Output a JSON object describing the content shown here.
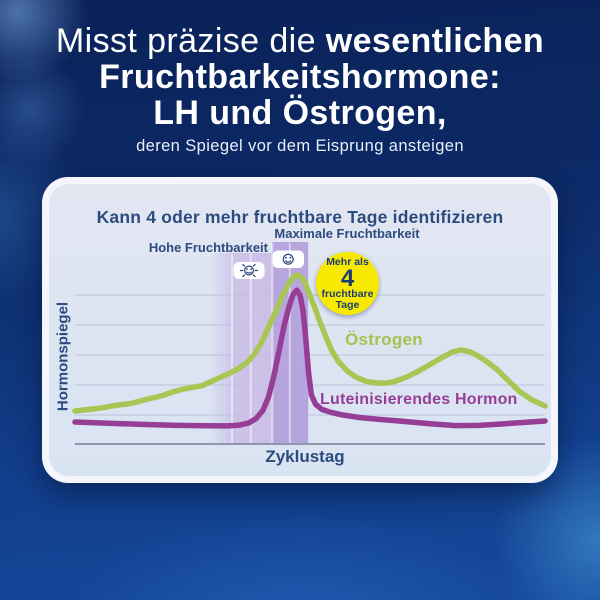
{
  "headline": {
    "line1_light": "Misst präzise die",
    "line1_bold": "wesentlichen",
    "line2": "Fruchtbarkeitshormone:",
    "line3": "LH und Östrogen,",
    "subline": "deren Spiegel vor dem Eisprung ansteigen"
  },
  "card": {
    "title": "Kann 4 oder mehr fruchtbare Tage identifizieren",
    "labels": {
      "high_fertility": "Hohe Fruchtbarkeit",
      "peak_fertility": "Maximale Fruchtbarkeit",
      "estrogen": "Östrogen",
      "lh": "Luteinisierendes Hormon",
      "y_axis": "Hormonspiegel",
      "x_axis": "Zyklustag"
    },
    "badge": {
      "line1": "Mehr als",
      "number": "4",
      "line2": "fruchtbare",
      "line3": "Tage",
      "bg": "#f7ea00",
      "text_color": "#1d3b76"
    }
  },
  "colors": {
    "headline_text": "#ffffff",
    "navy_text": "#2c4b7e",
    "estrogen_green": "#a9c654",
    "lh_purple": "#963e96",
    "band_light": "#c9bbe5",
    "band_dark": "#b3a0db",
    "card_panel": "#dde4f2",
    "gridline": "#c3cfe2",
    "axis": "#8e97ac"
  },
  "chart_data": {
    "type": "line",
    "title": "Kann 4 oder mehr fruchtbare Tage identifizieren",
    "xlabel": "Zyklustag",
    "ylabel": "Hormonspiegel",
    "x_axis_unit": "percent of cycle (schematic, no numeric ticks shown)",
    "y_axis_unit": "relative hormone level 0-100 (schematic, no numeric ticks shown)",
    "grid": "horizontal",
    "legend_position": "inline labels on curves",
    "series": [
      {
        "name": "Östrogen",
        "key": "estrogen",
        "color": "#a9c654",
        "points": [
          [
            0,
            19.5
          ],
          [
            3,
            20.5
          ],
          [
            6,
            21.5
          ],
          [
            9,
            23
          ],
          [
            12,
            24
          ],
          [
            14,
            25.5
          ],
          [
            16,
            27
          ],
          [
            18.5,
            28.5
          ],
          [
            21,
            31
          ],
          [
            23,
            32.5
          ],
          [
            25,
            33.5
          ],
          [
            27,
            34.5
          ],
          [
            29,
            37
          ],
          [
            31,
            39.5
          ],
          [
            33,
            42
          ],
          [
            35,
            45
          ],
          [
            36.5,
            48
          ],
          [
            38,
            52.5
          ],
          [
            39.5,
            59
          ],
          [
            41,
            68
          ],
          [
            42.5,
            77
          ],
          [
            44,
            87
          ],
          [
            45.5,
            95
          ],
          [
            46.6,
            99.3
          ],
          [
            47.3,
            100
          ],
          [
            48.2,
            98.5
          ],
          [
            49,
            95
          ],
          [
            50,
            88
          ],
          [
            51,
            81
          ],
          [
            52,
            73
          ],
          [
            53.3,
            64
          ],
          [
            54.6,
            55.5
          ],
          [
            56,
            49
          ],
          [
            57.8,
            43.5
          ],
          [
            59.8,
            39.5
          ],
          [
            62,
            37
          ],
          [
            64,
            36.2
          ],
          [
            66,
            36
          ],
          [
            68,
            37
          ],
          [
            70.5,
            39.5
          ],
          [
            73,
            43
          ],
          [
            75.5,
            47
          ],
          [
            78,
            51
          ],
          [
            80.3,
            54.5
          ],
          [
            82,
            55.6
          ],
          [
            83.8,
            54.8
          ],
          [
            85.5,
            52.5
          ],
          [
            87.5,
            49
          ],
          [
            89.8,
            44
          ],
          [
            92,
            38
          ],
          [
            94.6,
            31
          ],
          [
            97.3,
            26
          ],
          [
            100,
            22.5
          ]
        ]
      },
      {
        "name": "Luteinisierendes Hormon",
        "key": "lh",
        "color": "#963e96",
        "points": [
          [
            0,
            13
          ],
          [
            5,
            12.5
          ],
          [
            10,
            12
          ],
          [
            16,
            11.5
          ],
          [
            22,
            11
          ],
          [
            28,
            10.8
          ],
          [
            32.5,
            10.7
          ],
          [
            35,
            11.2
          ],
          [
            37,
            12.5
          ],
          [
            38.5,
            15
          ],
          [
            40,
            20
          ],
          [
            41.2,
            28
          ],
          [
            42.3,
            40
          ],
          [
            43.4,
            55
          ],
          [
            44.5,
            70
          ],
          [
            45.5,
            81
          ],
          [
            46.4,
            88.5
          ],
          [
            47.2,
            91
          ],
          [
            47.9,
            88
          ],
          [
            48.5,
            79
          ],
          [
            49.1,
            62
          ],
          [
            49.7,
            42
          ],
          [
            50.3,
            29
          ],
          [
            51.2,
            23.5
          ],
          [
            52.5,
            20.5
          ],
          [
            54.3,
            18.8
          ],
          [
            56.8,
            17.2
          ],
          [
            60.5,
            15.7
          ],
          [
            65,
            14.5
          ],
          [
            69,
            13.6
          ],
          [
            75.5,
            12
          ],
          [
            81,
            10.9
          ],
          [
            86,
            11
          ],
          [
            92.5,
            12.2
          ],
          [
            100,
            13.6
          ]
        ]
      }
    ],
    "bands": [
      {
        "name": "Hohe Fruchtbarkeit",
        "from_percent": 28.7,
        "to_percent": 41.9,
        "color": "#c9bbe5",
        "fade_in_left": true,
        "dividers_percent": [
          33.4,
          37.4
        ]
      },
      {
        "name": "Maximale Fruchtbarkeit",
        "from_percent": 41.9,
        "to_percent": 49.6,
        "color": "#b3a0db",
        "fade_in_left": false,
        "dividers_percent": [
          42.0,
          45.7
        ]
      }
    ],
    "annotations": [
      "Mehr als 4 fruchtbare Tage",
      "flashing-smiley marker on high-fertility band",
      "static-smiley marker on peak-fertility band"
    ]
  }
}
